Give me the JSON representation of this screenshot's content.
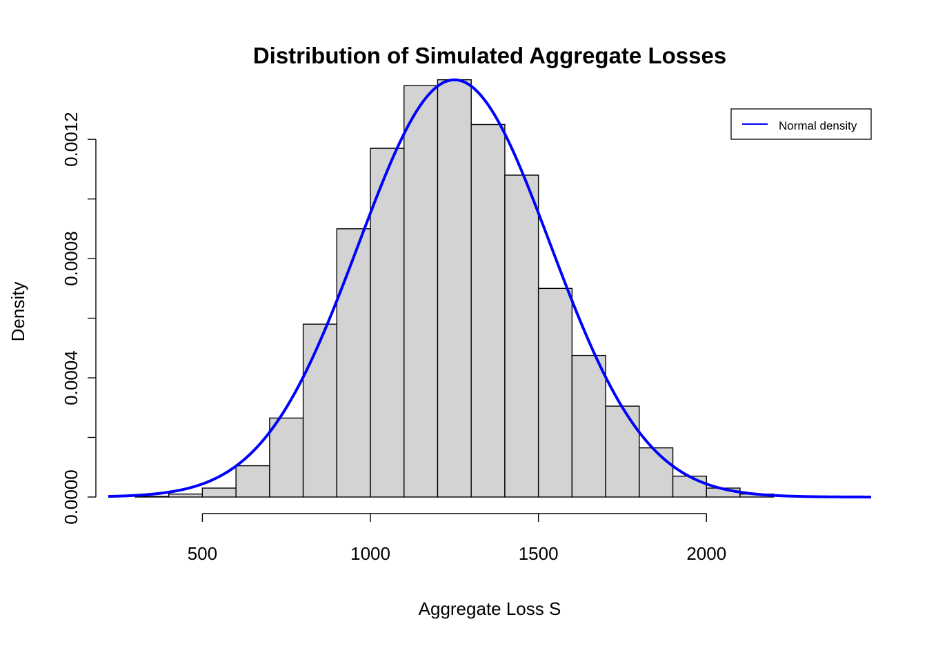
{
  "chart_data": {
    "type": "bar",
    "title": "Distribution of Simulated Aggregate Losses",
    "xlabel": "Aggregate Loss S",
    "ylabel": "Density",
    "xlim": [
      220,
      2490
    ],
    "ylim": [
      0,
      0.00139
    ],
    "x_ticks": [
      500,
      1000,
      1500,
      2000
    ],
    "x_tick_labels": [
      "500",
      "1000",
      "1500",
      "2000"
    ],
    "y_ticks": [
      0,
      0.0002,
      0.0004,
      0.0006,
      0.0008,
      0.001,
      0.0012
    ],
    "y_tick_labels": [
      "0.0000",
      "",
      "0.0004",
      "",
      "0.0008",
      "",
      "0.0012"
    ],
    "bin_edges": [
      300,
      400,
      500,
      600,
      700,
      800,
      900,
      1000,
      1100,
      1200,
      1300,
      1400,
      1500,
      1600,
      1700,
      1800,
      1900,
      2000,
      2100,
      2200
    ],
    "densities": [
      2e-06,
      1e-05,
      3e-05,
      0.000105,
      0.000265,
      0.00058,
      0.0009,
      0.00117,
      0.00138,
      0.0014,
      0.00125,
      0.00108,
      0.0007,
      0.000475,
      0.000305,
      0.000165,
      7e-05,
      3e-05,
      1e-05
    ],
    "bar_fill": "#d3d3d3",
    "bar_stroke": "#000000",
    "curve": {
      "name": "Normal density",
      "mean": 1250,
      "sd": 285,
      "color": "#0000ff"
    },
    "legend": {
      "position": "top-right",
      "entries": [
        "Normal density"
      ]
    }
  }
}
